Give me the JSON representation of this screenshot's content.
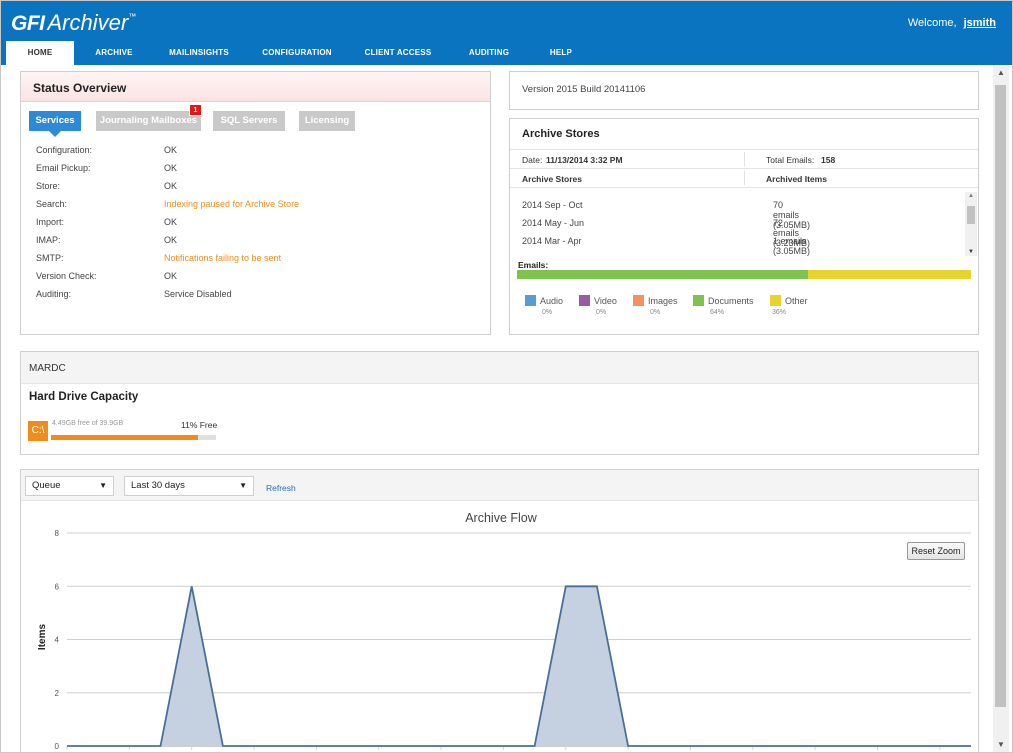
{
  "app": {
    "brand_bold": "GFI",
    "brand_name": "Archiver",
    "trademark": "™"
  },
  "header": {
    "welcome_text": "Welcome,",
    "username": "jsmith"
  },
  "nav": {
    "items": [
      {
        "label": "Home",
        "active": true
      },
      {
        "label": "Archive"
      },
      {
        "label": "MailInsights"
      },
      {
        "label": "Configuration"
      },
      {
        "label": "Client Access"
      },
      {
        "label": "Auditing"
      },
      {
        "label": "Help"
      }
    ]
  },
  "status_overview": {
    "title": "Status Overview",
    "tabs": [
      "Services",
      "Journaling Mailboxes",
      "SQL Servers",
      "Licensing"
    ],
    "journaling_badge": "1",
    "services": [
      {
        "name": "Configuration:",
        "value": "OK",
        "state": "ok"
      },
      {
        "name": "Email Pickup:",
        "value": "OK",
        "state": "ok"
      },
      {
        "name": "Store:",
        "value": "OK",
        "state": "ok"
      },
      {
        "name": "Search:",
        "value": "Indexing paused for Archive Store",
        "state": "warn"
      },
      {
        "name": "Import:",
        "value": "OK",
        "state": "ok"
      },
      {
        "name": "IMAP:",
        "value": "OK",
        "state": "ok"
      },
      {
        "name": "SMTP:",
        "value": "Notifications failing to be sent",
        "state": "warn"
      },
      {
        "name": "Version Check:",
        "value": "OK",
        "state": "ok"
      },
      {
        "name": "Auditing:",
        "value": "Service Disabled",
        "state": "ok"
      }
    ]
  },
  "version": {
    "text": "Version 2015 Build 20141106"
  },
  "archive_stores": {
    "title": "Archive Stores",
    "date_label": "Date:",
    "date_value": "11/13/2014 3:32 PM",
    "total_label": "Total Emails:",
    "total_value": "158",
    "col_store": "Archive Stores",
    "col_items": "Archived Items",
    "rows": [
      {
        "store": "2014 Sep - Oct",
        "items": "70 emails (3.05MB)"
      },
      {
        "store": "2014 May - Jun",
        "items": "72 emails (3.23MB)"
      },
      {
        "store": "2014 Mar - Apr",
        "items": "1 emails (3.05MB)"
      }
    ],
    "emails_label": "Emails:",
    "breakdown": [
      {
        "name": "Audio",
        "pct": "0%",
        "color": "#5b9bd5",
        "fraction": 0
      },
      {
        "name": "Video",
        "pct": "0%",
        "color": "#9b59a6",
        "fraction": 0
      },
      {
        "name": "Images",
        "pct": "0%",
        "color": "#f59064",
        "fraction": 0
      },
      {
        "name": "Documents",
        "pct": "64%",
        "color": "#7fc24f",
        "fraction": 0.64
      },
      {
        "name": "Other",
        "pct": "36%",
        "color": "#e6d32c",
        "fraction": 0.36
      }
    ]
  },
  "server": {
    "name": "MARDC",
    "capacity_title": "Hard Drive Capacity",
    "drive_letter": "C:\\",
    "free_text": "4.49GB free of 39.9GB",
    "free_pct_text": "11% Free",
    "used_fraction": 0.89
  },
  "archive_flow": {
    "queue_select": "Queue",
    "period_select": "Last 30 days",
    "refresh_label": "Refresh",
    "reset_zoom_label": "Reset Zoom"
  },
  "chart_data": {
    "type": "area",
    "title": "Archive Flow",
    "ylabel": "Items",
    "xlabel": "",
    "ylim": [
      0,
      8
    ],
    "yticks": [
      0,
      2,
      4,
      6,
      8
    ],
    "grid": true,
    "color": "#4a6e9a",
    "fill": "#c5d1e0",
    "x": [
      0,
      1,
      2,
      3,
      4,
      5,
      6,
      7,
      8,
      9,
      10,
      11,
      12,
      13,
      14,
      15,
      16,
      17,
      18,
      19,
      20,
      21,
      22,
      23,
      24,
      25,
      26,
      27,
      28,
      29
    ],
    "values": [
      0,
      0,
      0,
      0,
      6,
      0,
      0,
      0,
      0,
      0,
      0,
      0,
      0,
      0,
      0,
      0,
      6,
      6,
      0,
      0,
      0,
      0,
      0,
      0,
      0,
      0,
      0,
      0,
      0,
      0
    ]
  }
}
